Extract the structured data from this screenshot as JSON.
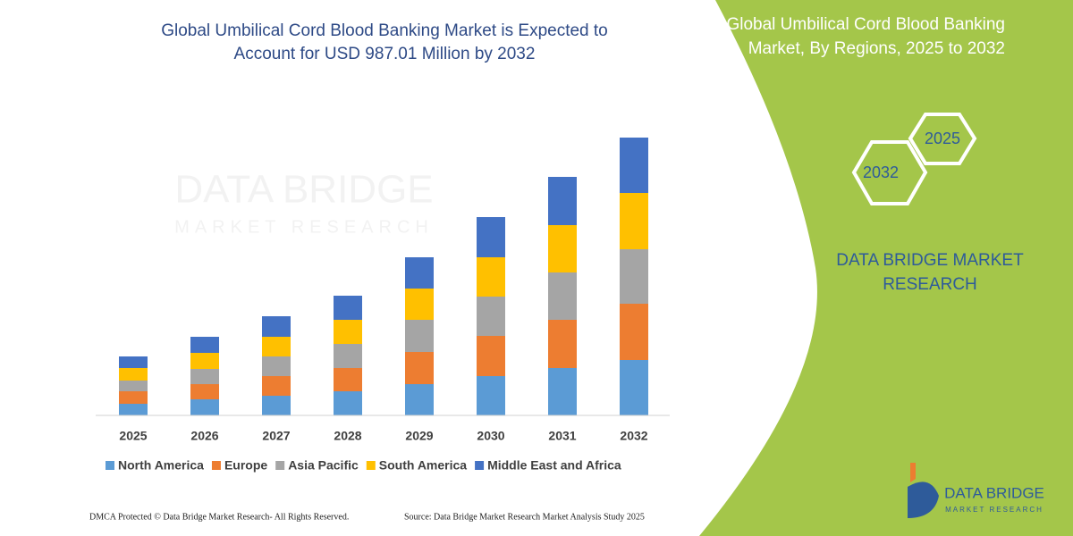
{
  "chart_data": {
    "type": "stacked-bar",
    "title": "Global Umbilical Cord Blood Banking Market is Expected to Account for USD 987.01 Million by 2032",
    "categories": [
      "2025",
      "2026",
      "2027",
      "2028",
      "2029",
      "2030",
      "2031",
      "2032"
    ],
    "series": [
      {
        "name": "North America",
        "color": "#5b9bd5",
        "values": [
          13,
          18,
          22,
          27,
          35,
          44,
          53,
          62
        ]
      },
      {
        "name": "Europe",
        "color": "#ed7d31",
        "values": [
          14,
          17,
          22,
          26,
          36,
          45,
          54,
          63
        ]
      },
      {
        "name": "Asia Pacific",
        "color": "#a5a5a5",
        "values": [
          12,
          17,
          22,
          27,
          36,
          44,
          53,
          61
        ]
      },
      {
        "name": "South America",
        "color": "#ffc000",
        "values": [
          14,
          18,
          22,
          27,
          35,
          44,
          53,
          63
        ]
      },
      {
        "name": "Middle East and Africa",
        "color": "#4472c4",
        "values": [
          13,
          18,
          23,
          27,
          35,
          45,
          54,
          62
        ]
      }
    ]
  },
  "panel": {
    "title": "Global Umbilical Cord Blood Banking Market, By Regions, 2025 to 2032",
    "hex_end": "2032",
    "hex_start": "2025",
    "brand": "DATA BRIDGE MARKET RESEARCH"
  },
  "watermark": {
    "line1": "DATA BRIDGE",
    "line2": "MARKET RESEARCH"
  },
  "footer": {
    "left": "DMCA Protected © Data Bridge Market Research-  All Rights Reserved.",
    "right": "Source: Data Bridge Market Research  Market Analysis Study 2025"
  },
  "logo": {
    "name": "DATA BRIDGE",
    "tagline": "MARKET RESEARCH"
  }
}
